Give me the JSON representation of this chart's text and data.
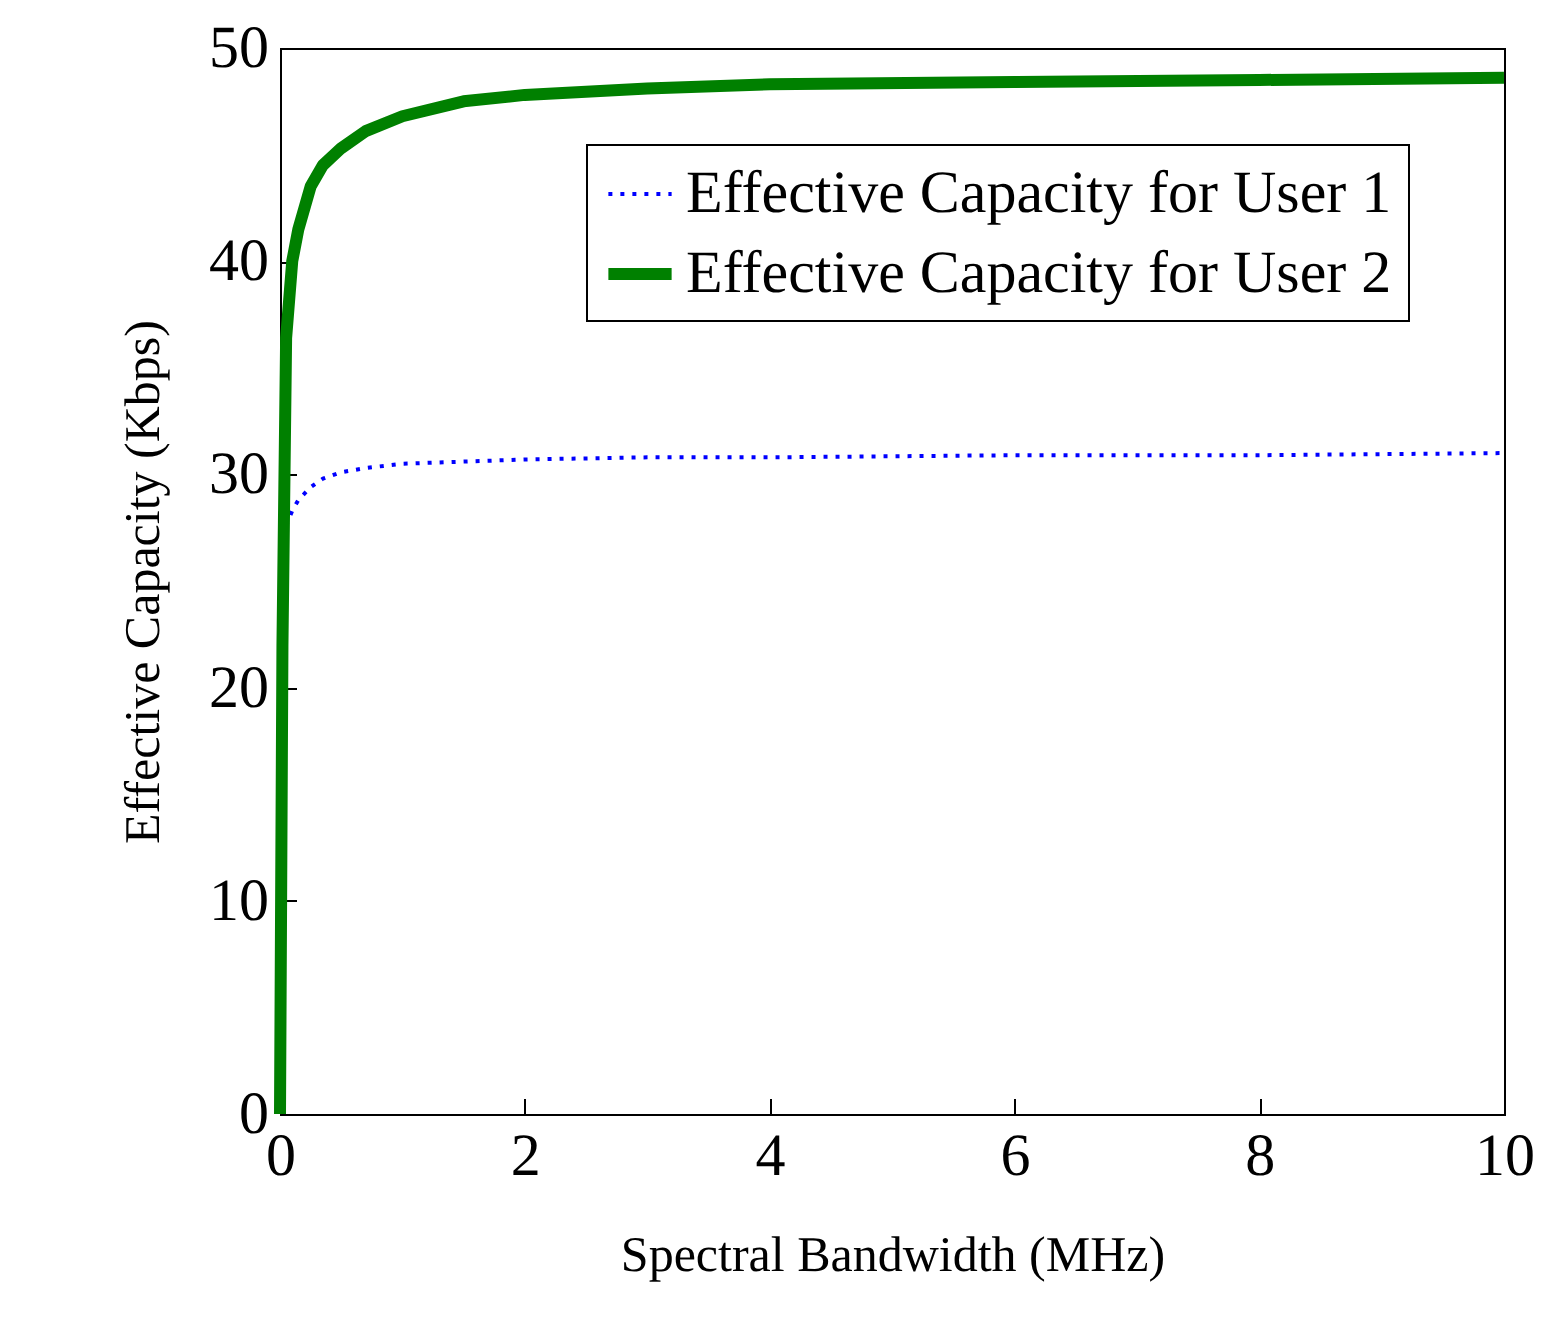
{
  "chart_data": {
    "type": "line",
    "xlabel": "Spectral Bandwidth (MHz)",
    "ylabel": "Effective Capacity (Kbps)",
    "xlim": [
      0,
      10
    ],
    "ylim": [
      0,
      50
    ],
    "xticks": [
      0,
      2,
      4,
      6,
      8,
      10
    ],
    "yticks": [
      0,
      10,
      20,
      30,
      40,
      50
    ],
    "grid": false,
    "legend": "top right",
    "x": [
      0,
      0.02,
      0.05,
      0.1,
      0.15,
      0.25,
      0.35,
      0.5,
      0.7,
      1,
      1.5,
      2,
      3,
      4,
      6,
      8,
      10
    ],
    "series": [
      {
        "name": "Effective Capacity for User 1",
        "color": "#0000ff",
        "line_style": "dotted",
        "x": [
          0,
          0.05,
          0.1,
          0.15,
          0.25,
          0.35,
          0.5,
          0.7,
          1,
          1.5,
          2,
          3,
          4,
          6,
          8,
          10
        ],
        "values": [
          0,
          27.6,
          28.3,
          28.8,
          29.4,
          29.8,
          30.1,
          30.3,
          30.5,
          30.6,
          30.7,
          30.8,
          30.8,
          30.9,
          30.9,
          31
        ]
      },
      {
        "name": "Effective Capacity for User 2",
        "color": "#008000",
        "line_style": "solid",
        "values": [
          0,
          22,
          36.4,
          40,
          41.5,
          43.5,
          44.5,
          45.3,
          46.1,
          46.8,
          47.5,
          47.8,
          48.1,
          48.3,
          48.4,
          48.5,
          48.6
        ]
      }
    ]
  }
}
